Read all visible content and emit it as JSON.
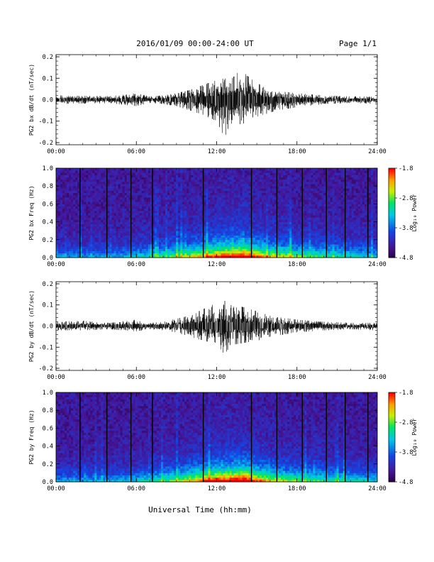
{
  "header": {
    "title": "2016/01/09  00:00-24:00 UT",
    "page": "Page 1/1"
  },
  "xlabel": "Universal Time (hh:mm)",
  "colors": {
    "trace": "#000000",
    "axis": "#000000"
  },
  "chart_data": [
    {
      "type": "line",
      "ylabel": "PG2 bx dB/dt (nT/sec)",
      "x_ticks": [
        "00:00",
        "06:00",
        "12:00",
        "18:00",
        "24:00"
      ],
      "y_ticks": [
        "0.2",
        "0.1",
        "0.0",
        "-0.1",
        "-0.2"
      ],
      "xlim": [
        0,
        24
      ],
      "ylim": [
        -0.21,
        0.21
      ],
      "envelope": {
        "x": [
          0,
          2,
          4,
          6,
          7,
          8,
          9,
          10,
          11,
          12,
          12.6,
          13,
          13.8,
          14.5,
          15.5,
          16.5,
          18,
          20,
          22,
          24
        ],
        "upper": [
          0.02,
          0.018,
          0.016,
          0.03,
          0.015,
          0.02,
          0.03,
          0.045,
          0.07,
          0.09,
          0.1,
          0.09,
          0.14,
          0.1,
          0.06,
          0.04,
          0.03,
          0.02,
          0.015,
          0.015
        ],
        "lower": [
          -0.02,
          -0.018,
          -0.016,
          -0.03,
          -0.015,
          -0.02,
          -0.03,
          -0.05,
          -0.07,
          -0.1,
          -0.18,
          -0.11,
          -0.12,
          -0.09,
          -0.07,
          -0.05,
          -0.035,
          -0.02,
          -0.015,
          -0.02
        ]
      }
    },
    {
      "type": "heatmap",
      "ylabel": "PG2 bx Freq (Hz)",
      "x_ticks": [
        "00:00",
        "06:00",
        "12:00",
        "18:00",
        "24:00"
      ],
      "y_ticks": [
        "1.0",
        "0.8",
        "0.6",
        "0.4",
        "0.2",
        "0.0"
      ],
      "xlim": [
        0,
        24
      ],
      "ylim": [
        0,
        1.0
      ],
      "colorbar": {
        "label": "Log₁₀ Power",
        "ticks": [
          "-1.8",
          "-2.8",
          "-3.8",
          "-4.8"
        ],
        "range": [
          -4.8,
          -1.8
        ]
      },
      "activity": {
        "x": [
          0,
          2,
          4,
          6,
          7,
          8,
          9,
          10,
          11,
          12,
          13,
          14,
          15,
          16,
          17,
          18,
          20,
          22,
          24
        ],
        "level": [
          0.3,
          0.28,
          0.3,
          0.35,
          0.4,
          0.45,
          0.5,
          0.55,
          0.65,
          0.75,
          0.8,
          0.85,
          0.7,
          0.6,
          0.55,
          0.5,
          0.45,
          0.4,
          0.35
        ]
      },
      "gap_lines_hours": [
        1.8,
        3.8,
        5.6,
        7.2,
        11.0,
        14.6,
        16.5,
        18.4,
        20.2,
        21.6,
        23.3
      ]
    },
    {
      "type": "line",
      "ylabel": "PG2 by dB/dt (nT/sec)",
      "x_ticks": [
        "00:00",
        "06:00",
        "12:00",
        "18:00",
        "24:00"
      ],
      "y_ticks": [
        "0.2",
        "0.1",
        "0.0",
        "-0.1",
        "-0.2"
      ],
      "xlim": [
        0,
        24
      ],
      "ylim": [
        -0.21,
        0.21
      ],
      "envelope": {
        "x": [
          0,
          2,
          4,
          6,
          7,
          8,
          9,
          10,
          11,
          12,
          12.6,
          13,
          14,
          15,
          16,
          17,
          18,
          20,
          22,
          24
        ],
        "upper": [
          0.02,
          0.025,
          0.015,
          0.03,
          0.015,
          0.02,
          0.035,
          0.05,
          0.08,
          0.11,
          0.12,
          0.1,
          0.09,
          0.07,
          0.05,
          0.04,
          0.03,
          0.02,
          0.015,
          0.015
        ],
        "lower": [
          -0.02,
          -0.02,
          -0.015,
          -0.025,
          -0.015,
          -0.02,
          -0.03,
          -0.05,
          -0.07,
          -0.08,
          -0.14,
          -0.09,
          -0.08,
          -0.07,
          -0.05,
          -0.04,
          -0.03,
          -0.02,
          -0.015,
          -0.02
        ]
      }
    },
    {
      "type": "heatmap",
      "ylabel": "PG2 by Freq (Hz)",
      "x_ticks": [
        "00:00",
        "06:00",
        "12:00",
        "18:00",
        "24:00"
      ],
      "y_ticks": [
        "1.0",
        "0.8",
        "0.6",
        "0.4",
        "0.2",
        "0.0"
      ],
      "xlim": [
        0,
        24
      ],
      "ylim": [
        0,
        1.0
      ],
      "colorbar": {
        "label": "Log₁₀ Power",
        "ticks": [
          "-1.8",
          "-2.8",
          "-3.8",
          "-4.8"
        ],
        "range": [
          -4.8,
          -1.8
        ]
      },
      "activity": {
        "x": [
          0,
          2,
          4,
          6,
          7,
          8,
          9,
          10,
          11,
          12,
          13,
          14,
          15,
          16,
          17,
          18,
          20,
          22,
          24
        ],
        "level": [
          0.3,
          0.3,
          0.3,
          0.35,
          0.4,
          0.45,
          0.5,
          0.6,
          0.7,
          0.8,
          0.85,
          0.88,
          0.72,
          0.6,
          0.55,
          0.5,
          0.45,
          0.4,
          0.35
        ]
      },
      "gap_lines_hours": [
        1.8,
        3.8,
        5.6,
        7.2,
        11.0,
        14.6,
        16.5,
        18.4,
        20.2,
        21.6,
        23.3
      ]
    }
  ]
}
